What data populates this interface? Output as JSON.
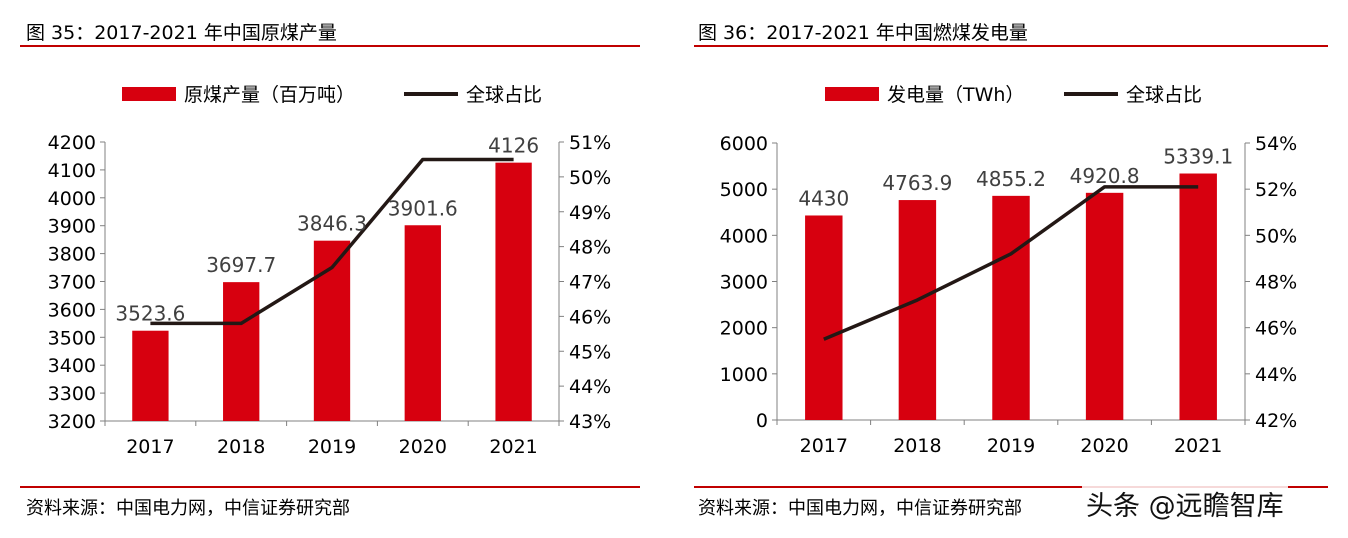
{
  "charts": [
    {
      "figure_title": "图 35：2017-2021 年中国原煤产量",
      "source": "资料来源：中国电力网，中信证券研究部",
      "legend": {
        "bar": "原煤产量（百万吨）",
        "line": "全球占比"
      },
      "colors": {
        "bar": "#d7000f",
        "line": "#231815",
        "rule": "#c00000"
      }
    },
    {
      "figure_title": "图 36：2017-2021 年中国燃煤发电量",
      "source": "资料来源：中国电力网，中信证券研究部",
      "legend": {
        "bar": "发电量（TWh）",
        "line": "全球占比"
      },
      "colors": {
        "bar": "#d7000f",
        "line": "#231815",
        "rule": "#c00000"
      }
    }
  ],
  "watermark": "头条 @远瞻智库",
  "chart_data": [
    {
      "type": "bar",
      "title": "图 35：2017-2021 年中国原煤产量",
      "categories": [
        "2017",
        "2018",
        "2019",
        "2020",
        "2021"
      ],
      "series": [
        {
          "name": "原煤产量（百万吨）",
          "type": "bar",
          "axis": "left",
          "values": [
            3523.6,
            3697.7,
            3846.3,
            3901.6,
            4126
          ],
          "labels": [
            "3523.6",
            "3697.7",
            "3846.3",
            "3901.6",
            "4126"
          ]
        },
        {
          "name": "全球占比",
          "type": "line",
          "axis": "right",
          "values": [
            45.8,
            45.8,
            47.4,
            50.5,
            50.5
          ]
        }
      ],
      "y_left": {
        "min": 3200,
        "max": 4200,
        "step": 100
      },
      "y_right": {
        "min": 43,
        "max": 51,
        "step": 1,
        "suffix": "%"
      },
      "legend_position": "top",
      "grid": false
    },
    {
      "type": "bar",
      "title": "图 36：2017-2021 年中国燃煤发电量",
      "categories": [
        "2017",
        "2018",
        "2019",
        "2020",
        "2021"
      ],
      "series": [
        {
          "name": "发电量（TWh）",
          "type": "bar",
          "axis": "left",
          "values": [
            4430,
            4763.9,
            4855.2,
            4920.8,
            5339.1
          ],
          "labels": [
            "4430",
            "4763.9",
            "4855.2",
            "4920.8",
            "5339.1"
          ]
        },
        {
          "name": "全球占比",
          "type": "line",
          "axis": "right",
          "values": [
            45.5,
            47.2,
            49.2,
            52.1,
            52.1
          ]
        }
      ],
      "y_left": {
        "min": 0,
        "max": 6000,
        "step": 1000
      },
      "y_right": {
        "min": 42,
        "max": 54,
        "step": 2,
        "suffix": "%"
      },
      "legend_position": "top",
      "grid": false
    }
  ]
}
